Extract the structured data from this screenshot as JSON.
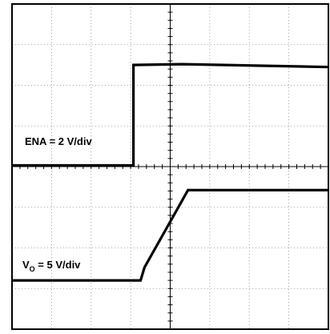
{
  "chart_data": {
    "type": "line",
    "grid": true,
    "divisions": {
      "x": 8,
      "y": 8
    },
    "series": [
      {
        "name": "ENA = 2 V/div",
        "label_main": "ENA = 2 V/div",
        "color": "#000000",
        "points": [
          [
            0,
            4.03
          ],
          [
            3.07,
            4.03
          ],
          [
            3.07,
            6.5
          ],
          [
            4.3,
            6.52
          ],
          [
            8,
            6.45
          ]
        ]
      },
      {
        "name": "VO = 5 V/div",
        "label_main": "V",
        "label_sub": "O",
        "label_rest": " = 5 V/div",
        "color": "#000000",
        "points": [
          [
            0,
            1.2
          ],
          [
            3.25,
            1.2
          ],
          [
            3.35,
            1.52
          ],
          [
            4.45,
            3.42
          ],
          [
            8,
            3.42
          ]
        ]
      }
    ]
  }
}
